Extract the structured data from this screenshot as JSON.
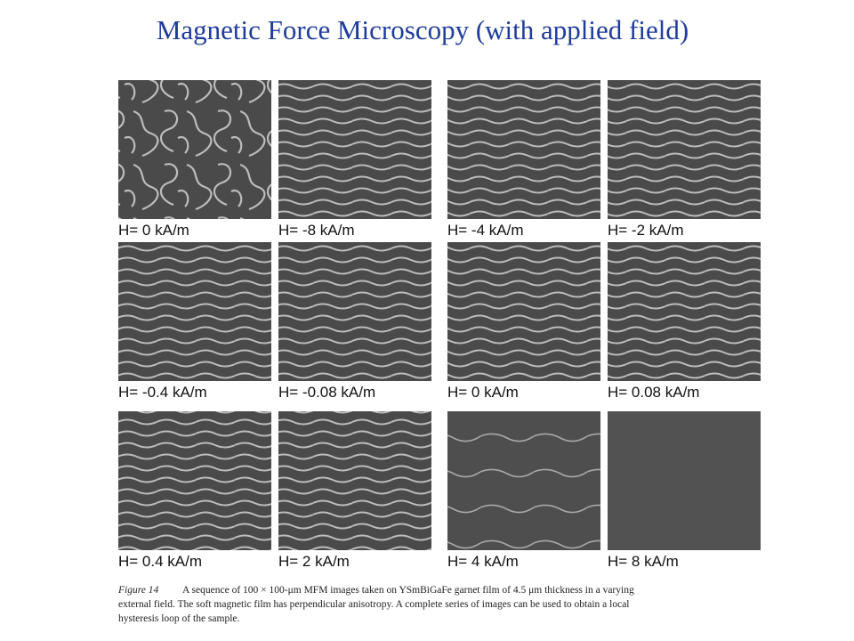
{
  "title": "Magnetic Force Microscopy (with applied field)",
  "panels": [
    {
      "label": "H= 0 kA/m"
    },
    {
      "label": "H= -8 kA/m"
    },
    {
      "label": "H= -4 kA/m"
    },
    {
      "label": "H= -2 kA/m"
    },
    {
      "label": "H= -0.4 kA/m"
    },
    {
      "label": "H= -0.08 kA/m"
    },
    {
      "label": "H= 0 kA/m"
    },
    {
      "label": "H= 0.08 kA/m"
    },
    {
      "label": "H= 0.4 kA/m"
    },
    {
      "label": "H= 2 kA/m"
    },
    {
      "label": "H= 4 kA/m"
    },
    {
      "label": "H= 8 kA/m"
    }
  ],
  "caption": {
    "label": "Figure 14",
    "lines": [
      "A sequence of 100 × 100-μm MFM images taken on YSmBiGaFe garnet film of 4.5 μm thickness in a varying",
      "external field. The soft magnetic film has perpendicular anisotropy. A complete series of images can be used to obtain a local",
      "hysteresis loop of the sample."
    ]
  }
}
